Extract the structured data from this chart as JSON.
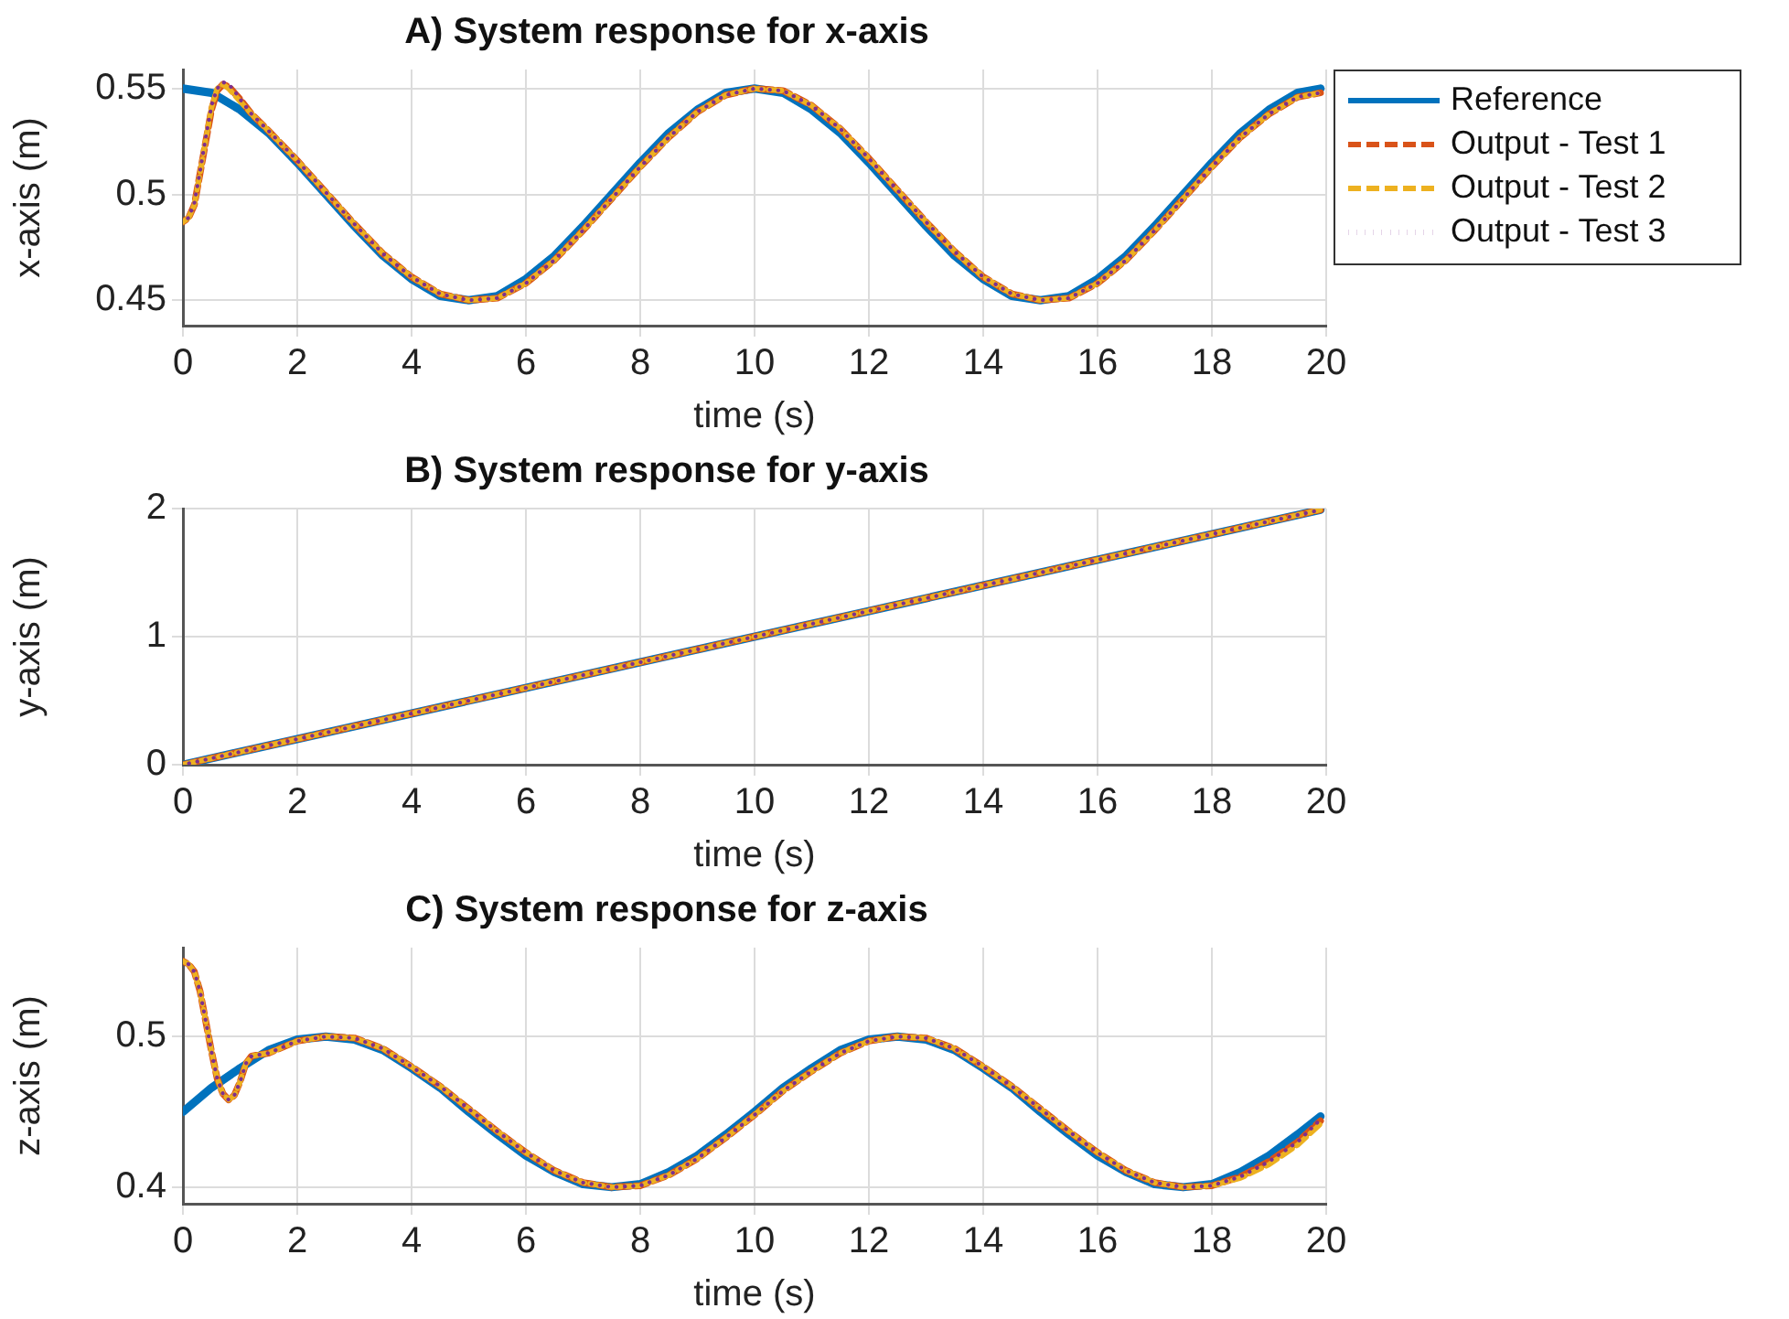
{
  "chart_data": [
    {
      "type": "line",
      "title": "A) System response for x-axis",
      "xlabel": "time (s)",
      "ylabel": "x-axis (m)",
      "xlim": [
        0,
        20
      ],
      "xticks": [
        0,
        2,
        4,
        6,
        8,
        10,
        12,
        14,
        16,
        18,
        20
      ],
      "ylim": [
        0.438,
        0.559
      ],
      "yticks": [
        0.45,
        0.5,
        0.55
      ],
      "grid": true,
      "legend": "right",
      "series": [
        {
          "name": "Reference",
          "color": "#0072bd",
          "line_style": "solid",
          "x": [
            0,
            0.5,
            1,
            1.5,
            2,
            2.5,
            3,
            3.5,
            4,
            4.5,
            5,
            5.5,
            6,
            6.5,
            7,
            7.5,
            8,
            8.5,
            9,
            9.5,
            10,
            10.5,
            11,
            11.5,
            12,
            12.5,
            13,
            13.5,
            14,
            14.5,
            15,
            15.5,
            16,
            16.5,
            17,
            17.5,
            18,
            18.5,
            19,
            19.5,
            19.9
          ],
          "values": [
            0.55,
            0.548,
            0.54,
            0.529,
            0.515,
            0.5,
            0.485,
            0.471,
            0.46,
            0.452,
            0.45,
            0.452,
            0.46,
            0.471,
            0.485,
            0.5,
            0.515,
            0.529,
            0.54,
            0.548,
            0.55,
            0.548,
            0.54,
            0.529,
            0.515,
            0.5,
            0.485,
            0.471,
            0.46,
            0.452,
            0.45,
            0.452,
            0.46,
            0.471,
            0.485,
            0.5,
            0.515,
            0.529,
            0.54,
            0.548,
            0.55
          ]
        },
        {
          "name": "Output - Test 1",
          "color": "#d95319",
          "line_style": "dashed",
          "x": [
            0,
            0.1,
            0.2,
            0.3,
            0.4,
            0.5,
            0.6,
            0.7,
            0.8,
            0.9,
            1,
            1.2,
            1.5,
            2,
            2.5,
            3,
            3.5,
            4,
            4.5,
            5,
            5.5,
            6,
            6.5,
            7,
            7.5,
            8,
            8.5,
            9,
            9.5,
            10,
            10.5,
            11,
            11.5,
            12,
            12.5,
            13,
            13.5,
            14,
            14.5,
            15,
            15.5,
            16,
            16.5,
            17,
            17.5,
            18,
            18.5,
            19,
            19.5,
            19.9
          ],
          "values": [
            0.487,
            0.489,
            0.495,
            0.51,
            0.525,
            0.54,
            0.549,
            0.552,
            0.551,
            0.548,
            0.545,
            0.538,
            0.53,
            0.516,
            0.501,
            0.486,
            0.472,
            0.461,
            0.453,
            0.45,
            0.451,
            0.458,
            0.469,
            0.483,
            0.498,
            0.513,
            0.527,
            0.539,
            0.547,
            0.55,
            0.549,
            0.542,
            0.531,
            0.517,
            0.502,
            0.487,
            0.473,
            0.461,
            0.453,
            0.45,
            0.451,
            0.458,
            0.469,
            0.483,
            0.498,
            0.513,
            0.527,
            0.538,
            0.546,
            0.548
          ]
        },
        {
          "name": "Output - Test 2",
          "color": "#edb120",
          "line_style": "dashed",
          "x": [
            0,
            0.1,
            0.2,
            0.3,
            0.4,
            0.5,
            0.6,
            0.7,
            0.8,
            0.9,
            1,
            1.2,
            1.5,
            2,
            2.5,
            3,
            3.5,
            4,
            4.5,
            5,
            5.5,
            6,
            6.5,
            7,
            7.5,
            8,
            8.5,
            9,
            9.5,
            10,
            10.5,
            11,
            11.5,
            12,
            12.5,
            13,
            13.5,
            14,
            14.5,
            15,
            15.5,
            16,
            16.5,
            17,
            17.5,
            18,
            18.5,
            19,
            19.5,
            19.9
          ],
          "values": [
            0.487,
            0.489,
            0.495,
            0.51,
            0.526,
            0.541,
            0.55,
            0.552,
            0.55,
            0.547,
            0.544,
            0.538,
            0.53,
            0.516,
            0.501,
            0.486,
            0.472,
            0.461,
            0.453,
            0.45,
            0.451,
            0.458,
            0.469,
            0.483,
            0.498,
            0.513,
            0.527,
            0.539,
            0.547,
            0.55,
            0.549,
            0.542,
            0.531,
            0.517,
            0.502,
            0.487,
            0.473,
            0.461,
            0.453,
            0.45,
            0.451,
            0.458,
            0.469,
            0.483,
            0.498,
            0.513,
            0.527,
            0.538,
            0.546,
            0.548
          ]
        },
        {
          "name": "Output - Test 3",
          "color": "#7e2f8e",
          "line_style": "dotted",
          "x": [
            0,
            0.1,
            0.2,
            0.3,
            0.4,
            0.5,
            0.6,
            0.7,
            0.8,
            0.9,
            1,
            1.2,
            1.5,
            2,
            2.5,
            3,
            3.5,
            4,
            4.5,
            5,
            5.5,
            6,
            6.5,
            7,
            7.5,
            8,
            8.5,
            9,
            9.5,
            10,
            10.5,
            11,
            11.5,
            12,
            12.5,
            13,
            13.5,
            14,
            14.5,
            15,
            15.5,
            16,
            16.5,
            17,
            17.5,
            18,
            18.5,
            19,
            19.5,
            19.9
          ],
          "values": [
            0.487,
            0.489,
            0.496,
            0.511,
            0.527,
            0.542,
            0.55,
            0.553,
            0.552,
            0.549,
            0.545,
            0.538,
            0.53,
            0.516,
            0.501,
            0.486,
            0.472,
            0.461,
            0.453,
            0.45,
            0.451,
            0.458,
            0.469,
            0.483,
            0.498,
            0.513,
            0.527,
            0.539,
            0.547,
            0.55,
            0.549,
            0.542,
            0.531,
            0.517,
            0.502,
            0.487,
            0.473,
            0.461,
            0.453,
            0.45,
            0.451,
            0.458,
            0.469,
            0.483,
            0.498,
            0.513,
            0.527,
            0.538,
            0.546,
            0.548
          ]
        }
      ]
    },
    {
      "type": "line",
      "title": "B) System response for y-axis",
      "xlabel": "time (s)",
      "ylabel": "y-axis (m)",
      "xlim": [
        0,
        20
      ],
      "xticks": [
        0,
        2,
        4,
        6,
        8,
        10,
        12,
        14,
        16,
        18,
        20
      ],
      "ylim": [
        0,
        2
      ],
      "yticks": [
        0,
        1,
        2
      ],
      "grid": true,
      "series": [
        {
          "color": "#0072bd",
          "line_style": "solid",
          "x": [
            0,
            19.9
          ],
          "values": [
            0,
            1.99
          ]
        },
        {
          "color": "#d95319",
          "line_style": "dashed",
          "x": [
            0,
            19.9
          ],
          "values": [
            0,
            1.99
          ]
        },
        {
          "color": "#edb120",
          "line_style": "dashed",
          "x": [
            0,
            19.9
          ],
          "values": [
            0,
            1.99
          ]
        },
        {
          "color": "#7e2f8e",
          "line_style": "dotted",
          "x": [
            0,
            19.9
          ],
          "values": [
            0,
            1.99
          ]
        }
      ]
    },
    {
      "type": "line",
      "title": "C) System response for z-axis",
      "xlabel": "time (s)",
      "ylabel": "z-axis (m)",
      "xlim": [
        0,
        20
      ],
      "xticks": [
        0,
        2,
        4,
        6,
        8,
        10,
        12,
        14,
        16,
        18,
        20
      ],
      "ylim": [
        0.389,
        0.559
      ],
      "yticks": [
        0.4,
        0.5
      ],
      "grid": true,
      "series": [
        {
          "color": "#0072bd",
          "line_style": "solid",
          "x": [
            0,
            0.5,
            1,
            1.5,
            2,
            2.5,
            3,
            3.5,
            4,
            4.5,
            5,
            5.5,
            6,
            6.5,
            7,
            7.5,
            8,
            8.5,
            9,
            9.5,
            10,
            10.5,
            11,
            11.5,
            12,
            12.5,
            13,
            13.5,
            14,
            14.5,
            15,
            15.5,
            16,
            16.5,
            17,
            17.5,
            18,
            18.5,
            19,
            19.5,
            19.9
          ],
          "values": [
            0.45,
            0.466,
            0.479,
            0.491,
            0.498,
            0.5,
            0.498,
            0.491,
            0.479,
            0.466,
            0.45,
            0.435,
            0.421,
            0.41,
            0.402,
            0.4,
            0.402,
            0.41,
            0.421,
            0.435,
            0.45,
            0.466,
            0.479,
            0.491,
            0.498,
            0.5,
            0.498,
            0.491,
            0.479,
            0.466,
            0.45,
            0.435,
            0.421,
            0.41,
            0.402,
            0.4,
            0.402,
            0.41,
            0.421,
            0.435,
            0.447
          ]
        },
        {
          "color": "#d95319",
          "line_style": "dashed",
          "x": [
            0,
            0.1,
            0.2,
            0.3,
            0.4,
            0.5,
            0.6,
            0.7,
            0.8,
            0.9,
            1,
            1.1,
            1.2,
            1.5,
            2,
            2.5,
            3,
            3.5,
            4,
            4.5,
            5,
            5.5,
            6,
            6.5,
            7,
            7.5,
            8,
            8.5,
            9,
            9.5,
            10,
            10.5,
            11,
            11.5,
            12,
            12.5,
            13,
            13.5,
            14,
            14.5,
            15,
            15.5,
            16,
            16.5,
            17,
            17.5,
            18,
            18.5,
            19,
            19.5,
            19.9
          ],
          "values": [
            0.55,
            0.548,
            0.543,
            0.53,
            0.51,
            0.49,
            0.472,
            0.462,
            0.458,
            0.461,
            0.47,
            0.482,
            0.487,
            0.489,
            0.497,
            0.5,
            0.499,
            0.492,
            0.48,
            0.467,
            0.452,
            0.437,
            0.423,
            0.411,
            0.403,
            0.4,
            0.401,
            0.408,
            0.419,
            0.433,
            0.448,
            0.464,
            0.477,
            0.489,
            0.497,
            0.5,
            0.499,
            0.492,
            0.48,
            0.467,
            0.452,
            0.437,
            0.423,
            0.411,
            0.403,
            0.4,
            0.401,
            0.407,
            0.417,
            0.43,
            0.444
          ]
        },
        {
          "color": "#edb120",
          "line_style": "dashed",
          "x": [
            0,
            0.1,
            0.2,
            0.3,
            0.4,
            0.5,
            0.6,
            0.7,
            0.8,
            0.9,
            1,
            1.1,
            1.2,
            1.5,
            2,
            2.5,
            3,
            3.5,
            4,
            4.5,
            5,
            5.5,
            6,
            6.5,
            7,
            7.5,
            8,
            8.5,
            9,
            9.5,
            10,
            10.5,
            11,
            11.5,
            12,
            12.5,
            13,
            13.5,
            14,
            14.5,
            15,
            15.5,
            16,
            16.5,
            17,
            17.5,
            18,
            18.5,
            19,
            19.5,
            19.9
          ],
          "values": [
            0.55,
            0.548,
            0.543,
            0.53,
            0.51,
            0.49,
            0.472,
            0.462,
            0.458,
            0.461,
            0.47,
            0.482,
            0.487,
            0.489,
            0.497,
            0.5,
            0.499,
            0.492,
            0.48,
            0.467,
            0.452,
            0.437,
            0.423,
            0.411,
            0.403,
            0.4,
            0.401,
            0.408,
            0.419,
            0.433,
            0.448,
            0.464,
            0.477,
            0.489,
            0.497,
            0.5,
            0.499,
            0.492,
            0.48,
            0.467,
            0.452,
            0.437,
            0.423,
            0.411,
            0.403,
            0.4,
            0.401,
            0.406,
            0.415,
            0.428,
            0.442
          ]
        },
        {
          "color": "#7e2f8e",
          "line_style": "dotted",
          "x": [
            0,
            0.1,
            0.2,
            0.3,
            0.4,
            0.5,
            0.6,
            0.7,
            0.8,
            0.9,
            1,
            1.1,
            1.2,
            1.5,
            2,
            2.5,
            3,
            3.5,
            4,
            4.5,
            5,
            5.5,
            6,
            6.5,
            7,
            7.5,
            8,
            8.5,
            9,
            9.5,
            10,
            10.5,
            11,
            11.5,
            12,
            12.5,
            13,
            13.5,
            14,
            14.5,
            15,
            15.5,
            16,
            16.5,
            17,
            17.5,
            18,
            18.5,
            19,
            19.5,
            19.9
          ],
          "values": [
            0.55,
            0.548,
            0.543,
            0.53,
            0.51,
            0.49,
            0.472,
            0.462,
            0.458,
            0.461,
            0.47,
            0.482,
            0.487,
            0.489,
            0.497,
            0.5,
            0.499,
            0.492,
            0.48,
            0.467,
            0.452,
            0.437,
            0.423,
            0.411,
            0.403,
            0.4,
            0.401,
            0.408,
            0.419,
            0.433,
            0.448,
            0.464,
            0.477,
            0.489,
            0.497,
            0.5,
            0.499,
            0.492,
            0.48,
            0.467,
            0.452,
            0.437,
            0.423,
            0.411,
            0.403,
            0.4,
            0.401,
            0.407,
            0.417,
            0.43,
            0.445
          ]
        }
      ]
    }
  ]
}
